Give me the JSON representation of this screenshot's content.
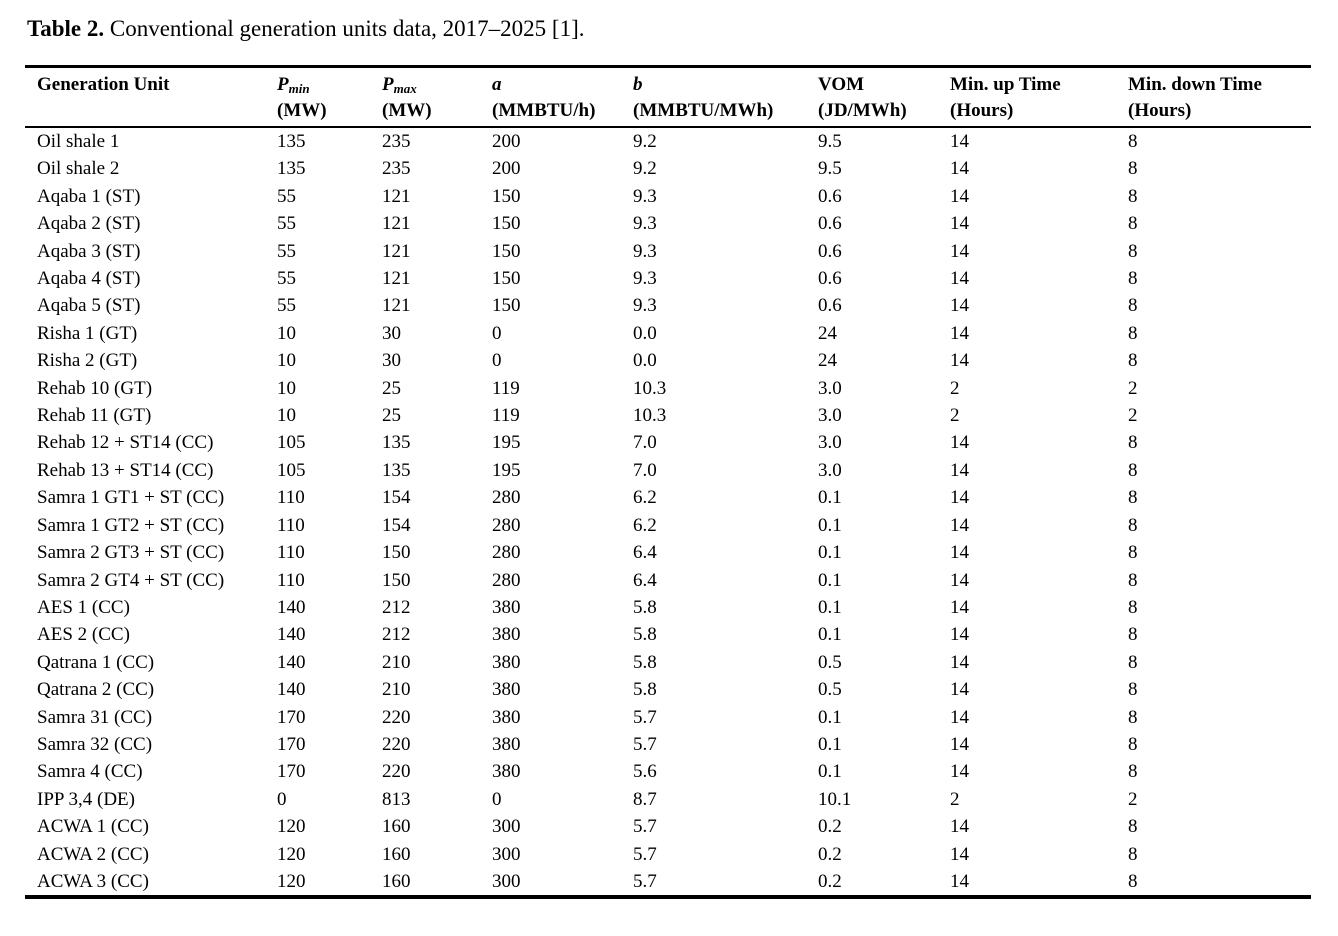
{
  "caption": {
    "label": "Table 2.",
    "text": " Conventional generation units data, 2017–2025 [1]."
  },
  "table": {
    "columns": [
      {
        "id": "generation-unit",
        "line1": "Generation Unit",
        "line2": ""
      },
      {
        "id": "p-min",
        "line1": "P",
        "sub": "min",
        "line2": "(MW)"
      },
      {
        "id": "p-max",
        "line1": "P",
        "sub": "max",
        "line2": "(MW)"
      },
      {
        "id": "a-coefficient",
        "line1": "a",
        "line2": "(MMBTU/h)"
      },
      {
        "id": "b-coefficient",
        "line1": "b",
        "line2": "(MMBTU/MWh)"
      },
      {
        "id": "vom",
        "line1": "VOM",
        "line2": "(JD/MWh)"
      },
      {
        "id": "min-up-time",
        "line1": "Min. up Time",
        "line2": "(Hours)"
      },
      {
        "id": "min-down-time",
        "line1": "Min. down Time",
        "line2": "(Hours)"
      }
    ],
    "rows": [
      [
        "Oil shale 1",
        "135",
        "235",
        "200",
        "9.2",
        "9.5",
        "14",
        "8"
      ],
      [
        "Oil shale 2",
        "135",
        "235",
        "200",
        "9.2",
        "9.5",
        "14",
        "8"
      ],
      [
        "Aqaba 1 (ST)",
        "55",
        "121",
        "150",
        "9.3",
        "0.6",
        "14",
        "8"
      ],
      [
        "Aqaba 2 (ST)",
        "55",
        "121",
        "150",
        "9.3",
        "0.6",
        "14",
        "8"
      ],
      [
        "Aqaba 3 (ST)",
        "55",
        "121",
        "150",
        "9.3",
        "0.6",
        "14",
        "8"
      ],
      [
        "Aqaba 4 (ST)",
        "55",
        "121",
        "150",
        "9.3",
        "0.6",
        "14",
        "8"
      ],
      [
        "Aqaba 5 (ST)",
        "55",
        "121",
        "150",
        "9.3",
        "0.6",
        "14",
        "8"
      ],
      [
        "Risha 1 (GT)",
        "10",
        "30",
        "0",
        "0.0",
        "24",
        "14",
        "8"
      ],
      [
        "Risha 2 (GT)",
        "10",
        "30",
        "0",
        "0.0",
        "24",
        "14",
        "8"
      ],
      [
        "Rehab 10 (GT)",
        "10",
        "25",
        "119",
        "10.3",
        "3.0",
        "2",
        "2"
      ],
      [
        "Rehab 11 (GT)",
        "10",
        "25",
        "119",
        "10.3",
        "3.0",
        "2",
        "2"
      ],
      [
        "Rehab 12 + ST14 (CC)",
        "105",
        "135",
        "195",
        "7.0",
        "3.0",
        "14",
        "8"
      ],
      [
        "Rehab 13 + ST14 (CC)",
        "105",
        "135",
        "195",
        "7.0",
        "3.0",
        "14",
        "8"
      ],
      [
        "Samra 1 GT1 + ST (CC)",
        "110",
        "154",
        "280",
        "6.2",
        "0.1",
        "14",
        "8"
      ],
      [
        "Samra 1 GT2 + ST (CC)",
        "110",
        "154",
        "280",
        "6.2",
        "0.1",
        "14",
        "8"
      ],
      [
        "Samra 2 GT3 + ST (CC)",
        "110",
        "150",
        "280",
        "6.4",
        "0.1",
        "14",
        "8"
      ],
      [
        "Samra 2 GT4 + ST (CC)",
        "110",
        "150",
        "280",
        "6.4",
        "0.1",
        "14",
        "8"
      ],
      [
        "AES 1 (CC)",
        "140",
        "212",
        "380",
        "5.8",
        "0.1",
        "14",
        "8"
      ],
      [
        "AES 2 (CC)",
        "140",
        "212",
        "380",
        "5.8",
        "0.1",
        "14",
        "8"
      ],
      [
        "Qatrana 1 (CC)",
        "140",
        "210",
        "380",
        "5.8",
        "0.5",
        "14",
        "8"
      ],
      [
        "Qatrana 2 (CC)",
        "140",
        "210",
        "380",
        "5.8",
        "0.5",
        "14",
        "8"
      ],
      [
        "Samra 31 (CC)",
        "170",
        "220",
        "380",
        "5.7",
        "0.1",
        "14",
        "8"
      ],
      [
        "Samra 32 (CC)",
        "170",
        "220",
        "380",
        "5.7",
        "0.1",
        "14",
        "8"
      ],
      [
        "Samra 4 (CC)",
        "170",
        "220",
        "380",
        "5.6",
        "0.1",
        "14",
        "8"
      ],
      [
        "IPP 3,4 (DE)",
        "0",
        "813",
        "0",
        "8.7",
        "10.1",
        "2",
        "2"
      ],
      [
        "ACWA 1 (CC)",
        "120",
        "160",
        "300",
        "5.7",
        "0.2",
        "14",
        "8"
      ],
      [
        "ACWA 2 (CC)",
        "120",
        "160",
        "300",
        "5.7",
        "0.2",
        "14",
        "8"
      ],
      [
        "ACWA 3 (CC)",
        "120",
        "160",
        "300",
        "5.7",
        "0.2",
        "14",
        "8"
      ]
    ]
  }
}
